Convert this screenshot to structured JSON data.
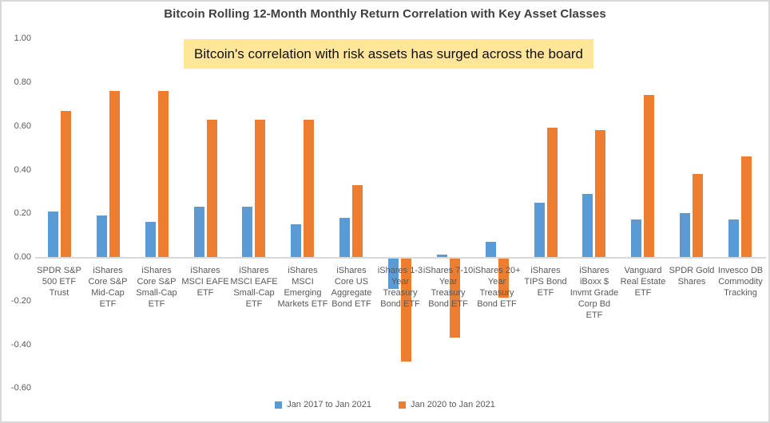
{
  "title": "Bitcoin Rolling 12-Month Monthly Return Correlation with Key Asset Classes",
  "annotation": {
    "text": "Bitcoin's correlation with risk assets has surged across the board",
    "bg_color": "#FFE699"
  },
  "colors": {
    "series_blue": "#5B9BD5",
    "series_orange": "#ED7D31",
    "axis_text": "#595959",
    "title_text": "#3F3F3F",
    "axis_line": "#D9D9D9",
    "frame_border": "#D8D8D8"
  },
  "chart_data": {
    "type": "bar",
    "title": "Bitcoin Rolling 12-Month Monthly Return Correlation with Key Asset Classes",
    "xlabel": "",
    "ylabel": "",
    "ylim": [
      -0.6,
      1.0
    ],
    "grid": false,
    "legend_position": "bottom",
    "yticks": [
      1.0,
      0.8,
      0.6,
      0.4,
      0.2,
      0.0,
      -0.2,
      -0.4,
      -0.6
    ],
    "ytick_labels": [
      "1.00",
      "0.80",
      "0.60",
      "0.40",
      "0.20",
      "0.00",
      "-0.20",
      "-0.40",
      "-0.60"
    ],
    "categories": [
      "SPDR S&P 500 ETF Trust",
      "iShares Core S&P Mid-Cap ETF",
      "iShares Core S&P Small-Cap ETF",
      "iShares MSCI EAFE ETF",
      "iShares MSCI EAFE Small-Cap ETF",
      "iShares MSCI Emerging Markets ETF",
      "iShares Core US Aggregate Bond ETF",
      "iShares 1-3 Year Treasury Bond ETF",
      "iShares 7-10 Year Treasury Bond ETF",
      "iShares 20+ Year Treasury Bond ETF",
      "iShares TIPS Bond ETF",
      "iShares iBoxx $ Invmt Grade Corp Bd ETF",
      "Vanguard Real Estate ETF",
      "SPDR Gold Shares",
      "Invesco DB Commodity Tracking"
    ],
    "series": [
      {
        "name": "Jan 2017 to Jan 2021",
        "color": "#5B9BD5",
        "values": [
          0.21,
          0.19,
          0.16,
          0.23,
          0.23,
          0.15,
          0.18,
          -0.14,
          0.01,
          0.07,
          0.25,
          0.29,
          0.17,
          0.2,
          0.17
        ]
      },
      {
        "name": "Jan 2020 to Jan 2021",
        "color": "#ED7D31",
        "values": [
          0.67,
          0.76,
          0.76,
          0.63,
          0.63,
          0.63,
          0.33,
          -0.47,
          -0.36,
          -0.18,
          0.59,
          0.58,
          0.74,
          0.38,
          0.46
        ]
      }
    ]
  }
}
